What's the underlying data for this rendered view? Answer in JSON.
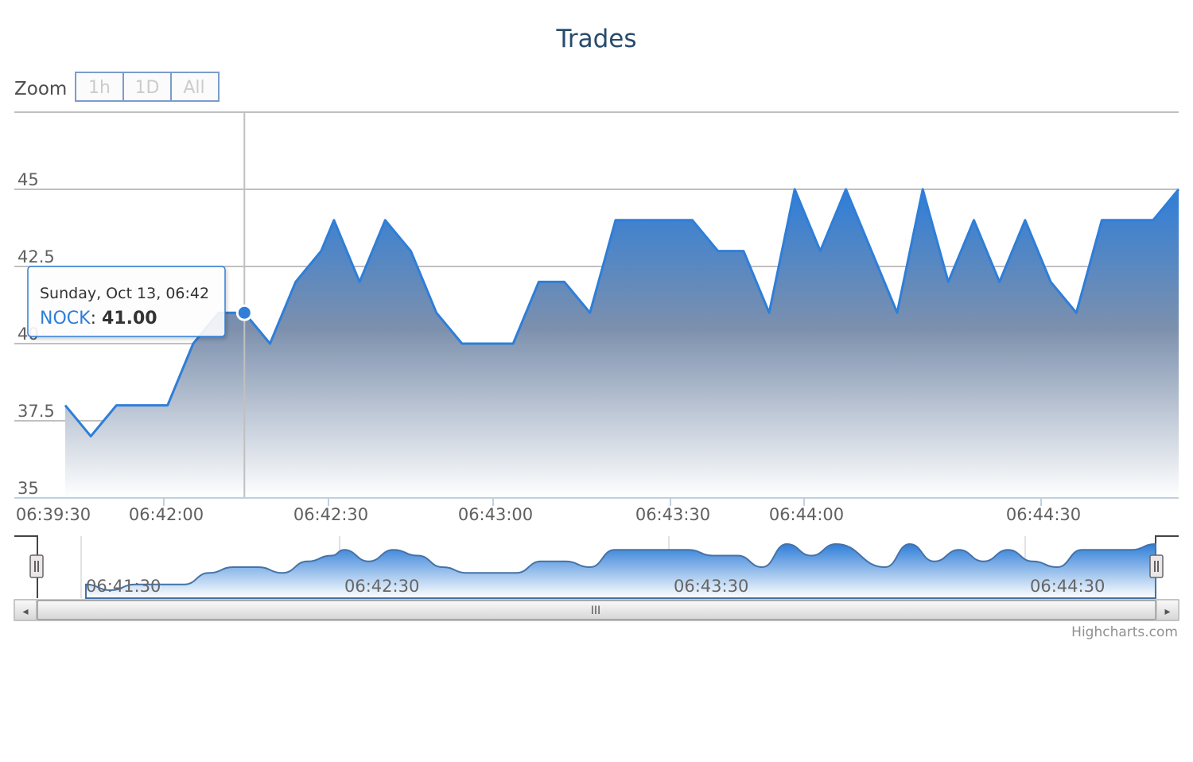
{
  "chart_data": {
    "type": "area",
    "title": "Trades",
    "series": [
      {
        "name": "NOCK",
        "color": "#2f7ed8",
        "points": [
          [
            "06:41:30",
            38
          ],
          [
            "06:41:36",
            37
          ],
          [
            "06:41:42",
            38
          ],
          [
            "06:41:54",
            38
          ],
          [
            "06:42:00",
            40
          ],
          [
            "06:42:06",
            41
          ],
          [
            "06:42:12",
            41
          ],
          [
            "06:42:18",
            40
          ],
          [
            "06:42:24",
            42
          ],
          [
            "06:42:30",
            43
          ],
          [
            "06:42:33",
            44
          ],
          [
            "06:42:39",
            42
          ],
          [
            "06:42:45",
            44
          ],
          [
            "06:42:51",
            43
          ],
          [
            "06:42:57",
            41
          ],
          [
            "06:43:03",
            40
          ],
          [
            "06:43:15",
            40
          ],
          [
            "06:43:21",
            42
          ],
          [
            "06:43:27",
            42
          ],
          [
            "06:43:33",
            41
          ],
          [
            "06:43:39",
            44
          ],
          [
            "06:43:57",
            44
          ],
          [
            "06:44:03",
            43
          ],
          [
            "06:44:09",
            43
          ],
          [
            "06:44:15",
            41
          ],
          [
            "06:44:21",
            45
          ],
          [
            "06:44:27",
            43
          ],
          [
            "06:44:33",
            45
          ],
          [
            "06:44:45",
            41
          ],
          [
            "06:44:51",
            45
          ],
          [
            "06:44:57",
            42
          ],
          [
            "06:45:03",
            44
          ],
          [
            "06:45:09",
            42
          ],
          [
            "06:45:15",
            44
          ],
          [
            "06:45:21",
            42
          ],
          [
            "06:45:27",
            41
          ],
          [
            "06:45:33",
            44
          ],
          [
            "06:45:45",
            44
          ],
          [
            "06:45:51",
            45
          ]
        ]
      }
    ],
    "y_ticks": [
      "35",
      "37.5",
      "40",
      "42.5",
      "45"
    ],
    "ylim": [
      35,
      47.5
    ],
    "x_ticks": [
      "06:39:30",
      "06:42:00",
      "06:42:30",
      "06:43:00",
      "06:43:30",
      "06:44:00",
      "06:44:30"
    ],
    "navigator_ticks": [
      "06:41:30",
      "06:42:30",
      "06:43:30",
      "06:44:30"
    ],
    "grid": true,
    "tooltip": {
      "date": "Sunday, Oct 13, 06:42",
      "series_name": "NOCK",
      "value": "41.00",
      "point_index": 6
    }
  },
  "range_selector": {
    "label": "Zoom",
    "buttons": [
      "1h",
      "1D",
      "All"
    ]
  },
  "scrollbar": {
    "left_arrow": "◂",
    "right_arrow": "▸",
    "grip": "III"
  },
  "credits": "Highcharts.com"
}
